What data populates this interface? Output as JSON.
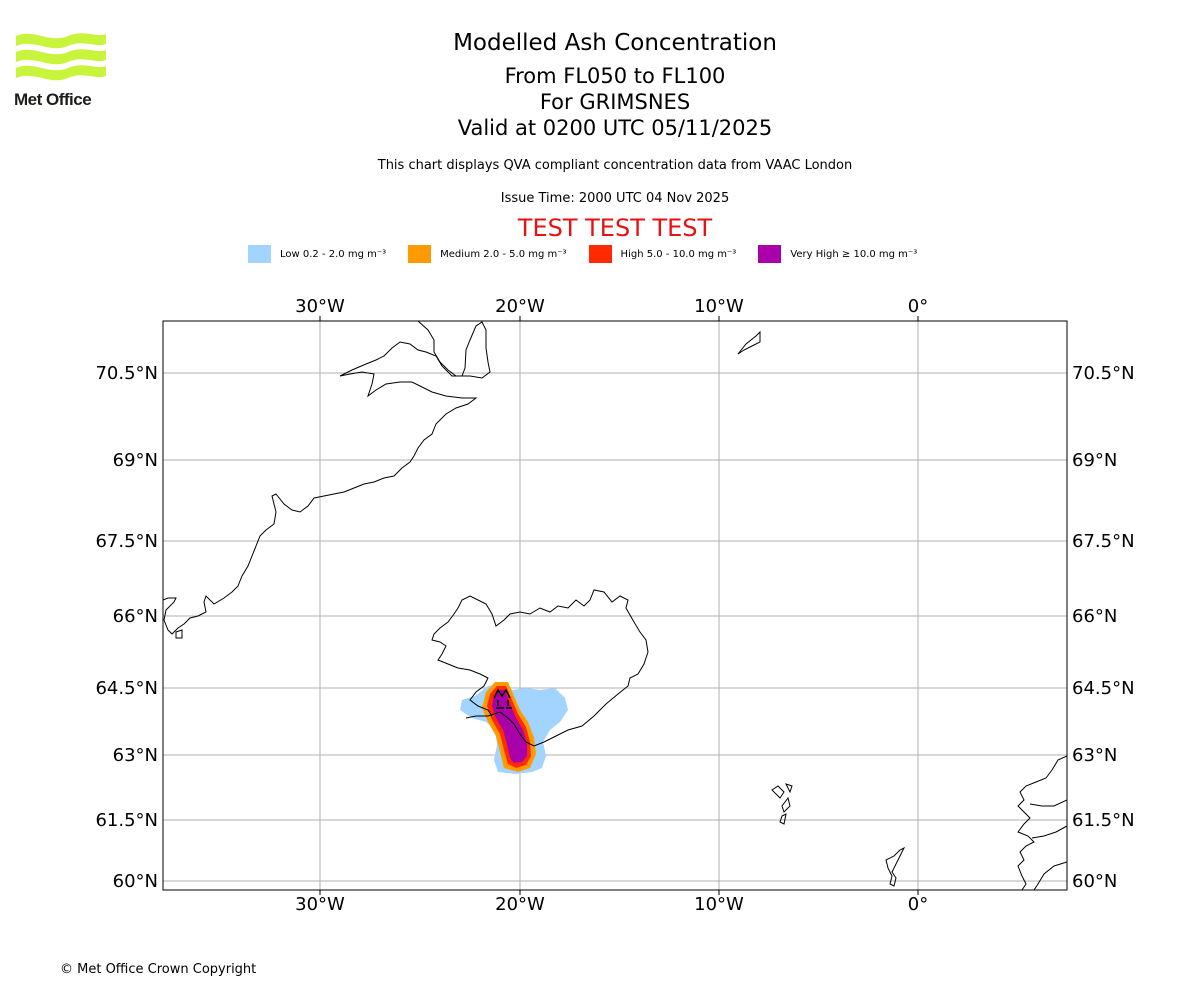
{
  "header": {
    "logo_text": "Met Office",
    "title": "Modelled Ash Concentration",
    "levels": "From FL050 to FL100",
    "volcano": "For GRIMSNES",
    "valid": "Valid at 0200 UTC 05/11/2025",
    "source_note": "This chart displays QVA compliant concentration data from VAAC London",
    "issue_time": "Issue Time: 2000 UTC 04 Nov 2025",
    "test_banner": "TEST TEST TEST"
  },
  "legend": {
    "items": [
      {
        "label": "Low 0.2 - 2.0 mg m⁻³",
        "color": "#a3d3ff"
      },
      {
        "label": "Medium 2.0 - 5.0 mg m⁻³",
        "color": "#ff9a00"
      },
      {
        "label": "High 5.0 - 10.0 mg m⁻³",
        "color": "#ff2a00"
      },
      {
        "label": "Very High ≥ 10.0 mg m⁻³",
        "color": "#aa00aa"
      }
    ]
  },
  "map": {
    "lon_ticks": [
      "30°W",
      "20°W",
      "10°W",
      "0°"
    ],
    "lat_ticks": [
      "70.5°N",
      "69°N",
      "67.5°N",
      "66°N",
      "64.5°N",
      "63°N",
      "61.5°N",
      "60°N"
    ],
    "grid_color": "#b0b0b0"
  },
  "footer": {
    "copyright": "© Met Office Crown Copyright"
  }
}
